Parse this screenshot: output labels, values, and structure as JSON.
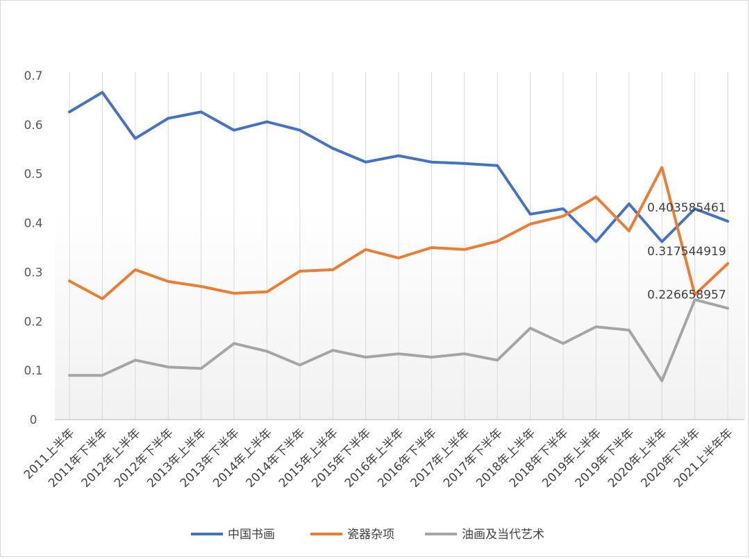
{
  "chart_data": {
    "type": "line",
    "title": "",
    "xlabel": "",
    "ylabel": "",
    "ylim": [
      0,
      0.7
    ],
    "yticks": [
      "0",
      "0.1",
      "0.2",
      "0.3",
      "0.4",
      "0.5",
      "0.6",
      "0.7"
    ],
    "grid": "vertical",
    "legend_position": "bottom",
    "categories": [
      "2011上半年",
      "2011年下半年",
      "2012年上半年",
      "2012年下半年",
      "2013年上半年",
      "2013年下半年",
      "2014年上半年",
      "2014年下半年",
      "2015年上半年",
      "2015年下半年",
      "2016年上半年",
      "2016年下半年",
      "2017年上半年",
      "2017年下半年",
      "2018年上半年",
      "2018年下半年",
      "2019年上半年",
      "2019年下半年",
      "2020年上半年",
      "2020年下半年",
      "2021上半年年"
    ],
    "series": [
      {
        "name": "中国书画",
        "color": "#4472C4",
        "values": [
          0.626,
          0.666,
          0.572,
          0.613,
          0.626,
          0.589,
          0.606,
          0.589,
          0.552,
          0.524,
          0.537,
          0.524,
          0.521,
          0.517,
          0.418,
          0.429,
          0.362,
          0.439,
          0.362,
          0.429,
          0.403585461
        ],
        "end_label": "0.403585461"
      },
      {
        "name": "瓷器杂项",
        "color": "#ED7D31",
        "values": [
          0.282,
          0.246,
          0.305,
          0.281,
          0.271,
          0.257,
          0.26,
          0.302,
          0.305,
          0.346,
          0.329,
          0.35,
          0.346,
          0.363,
          0.398,
          0.414,
          0.453,
          0.384,
          0.513,
          0.254,
          0.317544919
        ],
        "end_label": "0.317544919"
      },
      {
        "name": "油画及当代艺术",
        "color": "#A5A5A5",
        "values": [
          0.09,
          0.09,
          0.121,
          0.107,
          0.104,
          0.155,
          0.139,
          0.111,
          0.141,
          0.127,
          0.134,
          0.127,
          0.134,
          0.121,
          0.186,
          0.155,
          0.189,
          0.182,
          0.079,
          0.244,
          0.226658957
        ],
        "end_label": "0.226658957"
      }
    ]
  }
}
